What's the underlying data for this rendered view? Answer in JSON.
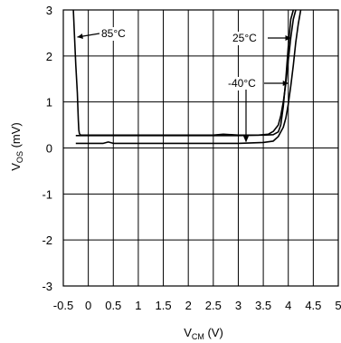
{
  "chart_data": {
    "type": "line",
    "title": "",
    "xlabel": {
      "main": "V",
      "sub": "CM",
      "unit": " (V)"
    },
    "ylabel": {
      "main": "V",
      "sub": "OS",
      "unit": " (mV)"
    },
    "xlim": [
      -0.5,
      5
    ],
    "ylim": [
      -3,
      3
    ],
    "x_ticks": [
      -0.5,
      0,
      0.5,
      1,
      1.5,
      2,
      2.5,
      3,
      3.5,
      4,
      4.5,
      5
    ],
    "x_tick_labels": [
      "-0.5",
      "0",
      "0.5",
      "1",
      "1.5",
      "2",
      "2.5",
      "3",
      "3.5",
      "4",
      "4.5",
      "5"
    ],
    "y_ticks": [
      -3,
      -2,
      -1,
      0,
      1,
      2,
      3
    ],
    "y_tick_labels": [
      "-3",
      "-2",
      "-1",
      "0",
      "1",
      "2",
      "3"
    ],
    "grid": true,
    "series": [
      {
        "name": "85°C",
        "x": [
          -0.3,
          -0.28,
          -0.25,
          -0.22,
          -0.2,
          -0.19,
          -0.18,
          -0.17,
          -0.15,
          0.0,
          1.0,
          2.0,
          2.5,
          2.7,
          3.0,
          3.5,
          3.7,
          3.8,
          3.85,
          3.9,
          3.95,
          4.0,
          4.05,
          4.1
        ],
        "y": [
          3.0,
          2.5,
          1.8,
          1.2,
          0.6,
          0.4,
          0.32,
          0.3,
          0.28,
          0.28,
          0.28,
          0.28,
          0.28,
          0.3,
          0.28,
          0.28,
          0.29,
          0.35,
          0.5,
          0.9,
          1.5,
          2.2,
          2.8,
          3.0
        ]
      },
      {
        "name": "25°C",
        "x": [
          -0.25,
          0.0,
          0.5,
          1.0,
          2.0,
          3.0,
          3.4,
          3.6,
          3.7,
          3.8,
          3.85,
          3.9,
          3.95,
          4.0,
          4.05,
          4.1,
          4.15
        ],
        "y": [
          0.27,
          0.27,
          0.27,
          0.27,
          0.27,
          0.27,
          0.28,
          0.3,
          0.36,
          0.5,
          0.7,
          1.0,
          1.4,
          1.9,
          2.4,
          2.8,
          3.0
        ]
      },
      {
        "name": "-40°C",
        "x": [
          -0.25,
          0.0,
          0.3,
          0.4,
          0.5,
          1.0,
          2.0,
          3.0,
          3.5,
          3.7,
          3.8,
          3.9,
          3.95,
          4.0,
          4.05,
          4.1,
          4.15,
          4.2,
          4.25
        ],
        "y": [
          0.1,
          0.1,
          0.1,
          0.13,
          0.1,
          0.1,
          0.1,
          0.1,
          0.12,
          0.15,
          0.25,
          0.45,
          0.65,
          0.95,
          1.35,
          1.8,
          2.3,
          2.7,
          3.0
        ]
      }
    ],
    "annotations": [
      {
        "text": "85°C",
        "series": "85°C"
      },
      {
        "text": "25°C",
        "series": "25°C"
      },
      {
        "text": "-40°C",
        "series": "-40°C"
      }
    ]
  }
}
